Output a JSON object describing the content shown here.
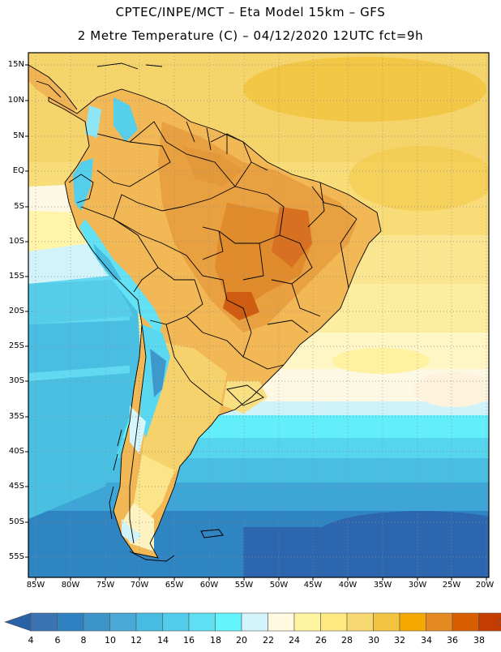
{
  "header": {
    "line1": "CPTEC/INPE/MCT –  Eta Model 15km – GFS",
    "line2": "2 Metre Temperature (C) – 04/12/2020 12UTC fct=9h"
  },
  "latitude_labels": [
    "15N",
    "10N",
    "5N",
    "EQ",
    "5S",
    "10S",
    "15S",
    "20S",
    "25S",
    "30S",
    "35S",
    "40S",
    "45S",
    "50S",
    "55S"
  ],
  "longitude_labels": [
    "85W",
    "80W",
    "75W",
    "70W",
    "65W",
    "60W",
    "55W",
    "50W",
    "45W",
    "40W",
    "35W",
    "30W",
    "25W",
    "20W"
  ],
  "colorbar": {
    "labels": [
      "4",
      "6",
      "8",
      "10",
      "12",
      "14",
      "16",
      "18",
      "20",
      "22",
      "24",
      "26",
      "28",
      "30",
      "32",
      "34",
      "36",
      "38"
    ],
    "colors": [
      "#3a74b3",
      "#2f82c2",
      "#3d94c9",
      "#49a8d6",
      "#47bbe1",
      "#52ccea",
      "#5edff2",
      "#63f4fc",
      "#d3f4fa",
      "#fff9e0",
      "#fff4a0",
      "#fde980",
      "#f8d870",
      "#f2c440",
      "#f4a800",
      "#e48a20",
      "#d85e00",
      "#c43c00"
    ],
    "left_arrow_color": "#2a62a8",
    "right_arrow_color": "#c43c00"
  },
  "map": {
    "ocean_north_color": "#f7d978",
    "land_hot_color": "#f0b050"
  }
}
